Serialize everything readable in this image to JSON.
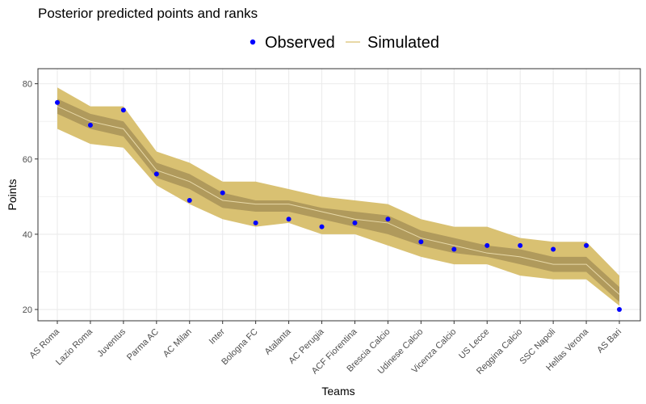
{
  "chart_data": {
    "type": "line",
    "title": "Posterior predicted points and ranks",
    "xlabel": "Teams",
    "ylabel": "Points",
    "ylim": [
      17,
      84
    ],
    "yticks": [
      20,
      40,
      60,
      80
    ],
    "grid": true,
    "legend_position": "top",
    "legend": [
      {
        "name": "Observed",
        "kind": "point",
        "color": "#0000ff"
      },
      {
        "name": "Simulated",
        "kind": "line",
        "color": "#d9c172"
      }
    ],
    "categories": [
      "AS Roma",
      "Lazio Roma",
      "Juventus",
      "Parma AC",
      "AC Milan",
      "Inter",
      "Bologna FC",
      "Atalanta",
      "AC Perugia",
      "ACF Fiorentina",
      "Brescia Calcio",
      "Udinese Calcio",
      "Vicenza Calcio",
      "US Lecce",
      "Reggina Calcio",
      "SSC Napoli",
      "Hellas Verona",
      "AS Bari"
    ],
    "series": [
      {
        "name": "Observed",
        "values": [
          75,
          69,
          73,
          56,
          49,
          51,
          43,
          44,
          42,
          43,
          44,
          38,
          36,
          37,
          37,
          36,
          37,
          20
        ]
      },
      {
        "name": "Simulated",
        "values": [
          74,
          70,
          68,
          57,
          54,
          49,
          48,
          48,
          46,
          44,
          43,
          39,
          37,
          35,
          34,
          32,
          32,
          24
        ]
      }
    ],
    "band_outer": {
      "lower": [
        68,
        64,
        63,
        53,
        48,
        44,
        42,
        43,
        40,
        40,
        37,
        34,
        32,
        32,
        29,
        28,
        28,
        21
      ],
      "upper": [
        79,
        74,
        74,
        62,
        59,
        54,
        54,
        52,
        50,
        49,
        48,
        44,
        42,
        42,
        39,
        38,
        38,
        29
      ]
    },
    "band_inner": {
      "lower": [
        72,
        68,
        66,
        55,
        52,
        47,
        46,
        46,
        44,
        42,
        40,
        37,
        35,
        34,
        32,
        30,
        30,
        22
      ],
      "upper": [
        76,
        72,
        70,
        59,
        56,
        51,
        49,
        49,
        47,
        46,
        45,
        41,
        39,
        37,
        36,
        34,
        34,
        26
      ]
    },
    "colors": {
      "outer_band": "#d9c172",
      "inner_band": "#b09a5c",
      "median_line": "#e8d9a8",
      "observed": "#0000ff",
      "grid": "#ebebeb",
      "panel_border": "#333333"
    }
  }
}
